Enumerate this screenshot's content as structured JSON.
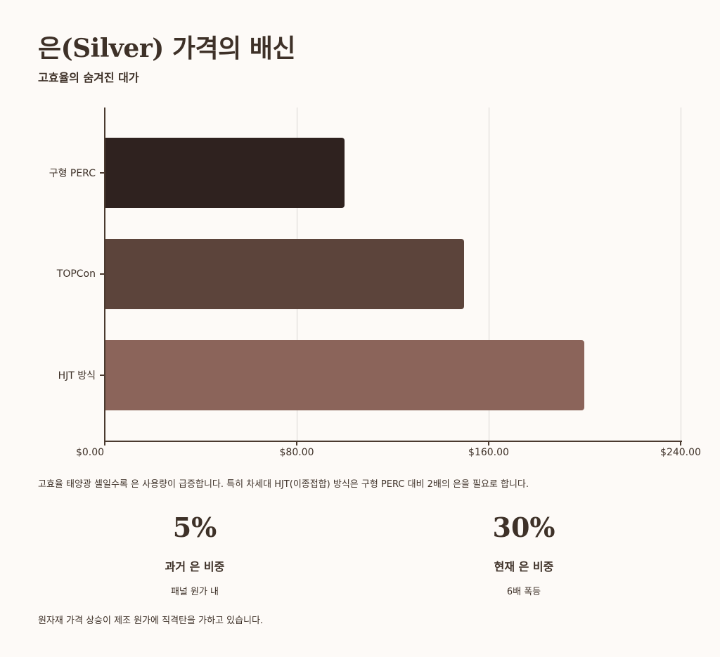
{
  "header": {
    "title": "은(Silver) 가격의 배신",
    "subtitle": "고효율의 숨겨진 대가"
  },
  "chart_data": {
    "type": "bar",
    "orientation": "horizontal",
    "categories": [
      "구형 PERC",
      "TOPCon",
      "HJT 방식"
    ],
    "values": [
      100,
      150,
      200
    ],
    "colors": [
      "#2f221f",
      "#5c443b",
      "#8b645a"
    ],
    "title": "",
    "xlabel": "",
    "ylabel": "",
    "xlim": [
      0,
      240
    ],
    "x_ticks": [
      "$0.00",
      "$80.00",
      "$160.00",
      "$240.00"
    ],
    "x_tick_values": [
      0,
      80,
      160,
      240
    ],
    "grid": "vertical",
    "legend": "none"
  },
  "caption": "고효율 태양광 셀일수록 은 사용량이 급증합니다. 특히 차세대 HJT(이종접합) 방식은 구형 PERC 대비 2배의 은을 필요로 합니다.",
  "stats": [
    {
      "value": "5%",
      "label": "과거 은 비중",
      "desc": "패널 원가 내"
    },
    {
      "value": "30%",
      "label": "현재 은 비중",
      "desc": "6배 폭등"
    }
  ],
  "footer": "원자재 가격 상승이 제조 원가에 직격탄을 가하고 있습니다."
}
